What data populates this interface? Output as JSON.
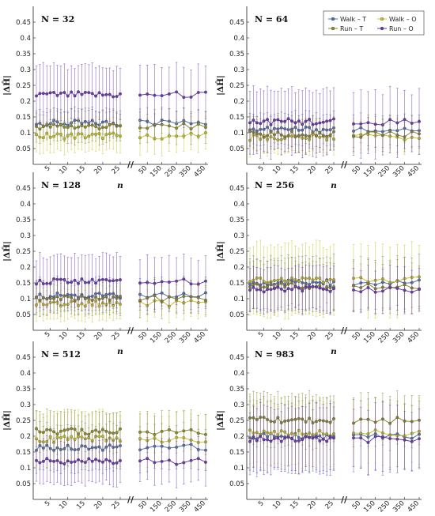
{
  "chart_data": {
    "type": "line",
    "ylabel": "|ΔĤ|",
    "xlabel": "n",
    "ylim": [
      0,
      0.5
    ],
    "yticks": [
      0.05,
      0.1,
      0.15,
      0.2,
      0.25,
      0.3,
      0.35,
      0.4,
      0.45
    ],
    "ytick_labels": [
      "0.05",
      "0.1",
      "0.15",
      "0.2",
      "0.25",
      "0.3",
      "0.35",
      "0.4",
      "0.45"
    ],
    "xticks_left": [
      "5",
      "10",
      "15",
      "20",
      "25"
    ],
    "xticks_right": [
      "50",
      "150",
      "250",
      "350",
      "450"
    ],
    "axis_break": "//",
    "grid": false,
    "legend_placement": "top-right",
    "legend": [
      {
        "label": "Walk – T",
        "color": "#4a6fb5"
      },
      {
        "label": "Walk – O",
        "color": "#c7c42b"
      },
      {
        "label": "Run – T",
        "color": "#8b8a2e"
      },
      {
        "label": "Run – O",
        "color": "#6a3aa8"
      }
    ],
    "panels": [
      {
        "title": "N = 32",
        "series": [
          {
            "label": "Walk – T",
            "mean": 0.13,
            "err": 0.04
          },
          {
            "label": "Walk – O",
            "mean": 0.09,
            "err": 0.05
          },
          {
            "label": "Run – T",
            "mean": 0.12,
            "err": 0.05
          },
          {
            "label": "Run – O",
            "mean": 0.22,
            "err": 0.09
          }
        ]
      },
      {
        "title": "N = 64",
        "series": [
          {
            "label": "Walk – T",
            "mean": 0.11,
            "err": 0.05
          },
          {
            "label": "Walk – O",
            "mean": 0.085,
            "err": 0.05
          },
          {
            "label": "Run – T",
            "mean": 0.095,
            "err": 0.05
          },
          {
            "label": "Run – O",
            "mean": 0.135,
            "err": 0.1
          }
        ]
      },
      {
        "title": "N = 128",
        "series": [
          {
            "label": "Walk – T",
            "mean": 0.11,
            "err": 0.05
          },
          {
            "label": "Walk – O",
            "mean": 0.085,
            "err": 0.05
          },
          {
            "label": "Run – T",
            "mean": 0.1,
            "err": 0.05
          },
          {
            "label": "Run – O",
            "mean": 0.155,
            "err": 0.08
          }
        ]
      },
      {
        "title": "N = 256",
        "series": [
          {
            "label": "Walk – T",
            "mean": 0.15,
            "err": 0.08
          },
          {
            "label": "Walk – O",
            "mean": 0.16,
            "err": 0.11
          },
          {
            "label": "Run – T",
            "mean": 0.14,
            "err": 0.08
          },
          {
            "label": "Run – O",
            "mean": 0.13,
            "err": 0.07
          }
        ]
      },
      {
        "title": "N = 512",
        "series": [
          {
            "label": "Walk – T",
            "mean": 0.165,
            "err": 0.07
          },
          {
            "label": "Walk – O",
            "mean": 0.19,
            "err": 0.08
          },
          {
            "label": "Run – T",
            "mean": 0.215,
            "err": 0.06
          },
          {
            "label": "Run – O",
            "mean": 0.12,
            "err": 0.07
          }
        ]
      },
      {
        "title": "N = 983",
        "series": [
          {
            "label": "Walk – T",
            "mean": 0.2,
            "err": 0.11
          },
          {
            "label": "Walk – O",
            "mean": 0.21,
            "err": 0.1
          },
          {
            "label": "Run – T",
            "mean": 0.25,
            "err": 0.08
          },
          {
            "label": "Run – O",
            "mean": 0.19,
            "err": 0.1
          }
        ]
      }
    ]
  }
}
